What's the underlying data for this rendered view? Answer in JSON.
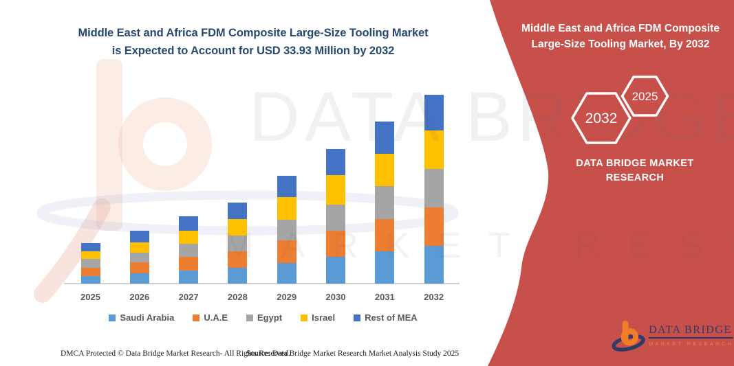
{
  "title": {
    "line1": "Middle East and Africa FDM Composite Large-Size Tooling Market",
    "line2": "is Expected to Account for USD 33.93 Million by 2032",
    "color": "#27496E"
  },
  "banner": {
    "color": "#C8504B",
    "title_line1": "Middle East and Africa FDM Composite",
    "title_line2": "Large-Size Tooling Market, By 2032",
    "hexagons": [
      {
        "label": "2032"
      },
      {
        "label": "2025"
      }
    ],
    "brand_text": "DATA BRIDGE MARKET RESEARCH"
  },
  "chart_data": {
    "type": "bar",
    "stacked": true,
    "title": "Middle East and Africa FDM Composite Large-Size Tooling Market is Expected to Account for USD 33.93 Million by 2032",
    "unit": "USD Million",
    "categories": [
      "2025",
      "2026",
      "2027",
      "2028",
      "2029",
      "2030",
      "2031",
      "2032"
    ],
    "series": [
      {
        "name": "Saudi Arabia",
        "color": "#5B9BD5",
        "values": [
          1.4,
          1.85,
          2.35,
          2.85,
          3.7,
          4.75,
          5.75,
          6.8
        ]
      },
      {
        "name": "U.A.E",
        "color": "#ED7D31",
        "values": [
          1.45,
          1.95,
          2.4,
          2.95,
          4.1,
          4.8,
          5.8,
          6.9
        ]
      },
      {
        "name": "Egypt",
        "color": "#A5A5A5",
        "values": [
          1.55,
          1.8,
          2.35,
          2.8,
          3.7,
          4.65,
          5.95,
          6.93
        ]
      },
      {
        "name": "Israel",
        "color": "#FFC000",
        "values": [
          1.35,
          1.85,
          2.45,
          2.95,
          4.05,
          5.3,
          5.75,
          6.85
        ]
      },
      {
        "name": "Rest of MEA",
        "color": "#4472C4",
        "values": [
          1.5,
          2.05,
          2.5,
          2.95,
          3.85,
          4.7,
          5.85,
          6.45
        ]
      }
    ],
    "totals": [
      7.25,
      9.5,
      12.05,
      14.5,
      19.4,
      24.2,
      29.1,
      33.93
    ],
    "highlight_value": "USD 33.93 Million",
    "xlabel": "",
    "ylabel": "",
    "ylim": [
      0,
      34
    ],
    "grid": false,
    "legend_position": "bottom"
  },
  "watermark": {
    "line1": "DATA BRIDGE",
    "line2": "MARKET RESEARCH"
  },
  "footer": {
    "left": "DMCA Protected © Data Bridge Market Research-  All Rights Reserved.",
    "right": "Source: Data Bridge Market Research  Market Analysis Study 2025"
  },
  "logo": {
    "name": "DATA BRIDGE",
    "subtext": "MARKET RESEARCH",
    "orange": "#F07E26",
    "navy": "#2E3A67"
  }
}
